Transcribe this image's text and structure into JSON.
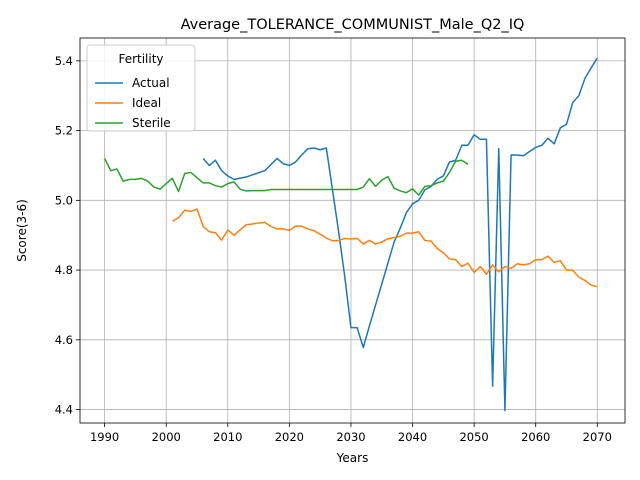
{
  "chart_data": {
    "type": "line",
    "title": "Average_TOLERANCE_COMMUNIST_Male_Q2_IQ",
    "xlabel": "Years",
    "ylabel": "Score(3-6)",
    "xlim": [
      1986,
      2074.5
    ],
    "ylim": [
      4.36,
      4.565
    ],
    "xticks": [
      1990,
      2000,
      2010,
      2020,
      2030,
      2040,
      2050,
      2060,
      2070
    ],
    "yticks": [
      4.4,
      4.6,
      4.8,
      5.0,
      5.2,
      5.4
    ],
    "ytick_labels": [
      "4.4",
      "4.6",
      "4.8",
      "5.0",
      "5.2",
      "5.4"
    ],
    "grid": true,
    "legend": {
      "title": "Fertility",
      "placement": "upper-left"
    },
    "series": [
      {
        "name": "Actual",
        "color": "#1f77b4",
        "points": [
          [
            2006,
            5.12
          ],
          [
            2007,
            5.1
          ],
          [
            2008,
            5.115
          ],
          [
            2009,
            5.085
          ],
          [
            2010,
            5.07
          ],
          [
            2011,
            5.06
          ],
          [
            2013,
            5.067
          ],
          [
            2016,
            5.085
          ],
          [
            2018,
            5.12
          ],
          [
            2019,
            5.105
          ],
          [
            2020,
            5.1
          ],
          [
            2021,
            5.11
          ],
          [
            2022,
            5.13
          ],
          [
            2023,
            5.148
          ],
          [
            2024,
            5.15
          ],
          [
            2025,
            5.145
          ],
          [
            2026,
            5.15
          ],
          [
            2027,
            5.03
          ],
          [
            2028,
            4.91
          ],
          [
            2029,
            4.78
          ],
          [
            2030,
            4.635
          ],
          [
            2031,
            4.635
          ],
          [
            2032,
            4.578
          ],
          [
            2033,
            4.64
          ],
          [
            2034,
            4.7
          ],
          [
            2035,
            4.76
          ],
          [
            2036,
            4.82
          ],
          [
            2037,
            4.88
          ],
          [
            2038,
            4.92
          ],
          [
            2039,
            4.965
          ],
          [
            2040,
            4.99
          ],
          [
            2041,
            5.0
          ],
          [
            2042,
            5.03
          ],
          [
            2043,
            5.04
          ],
          [
            2044,
            5.06
          ],
          [
            2045,
            5.07
          ],
          [
            2046,
            5.11
          ],
          [
            2047,
            5.115
          ],
          [
            2048,
            5.158
          ],
          [
            2049,
            5.158
          ],
          [
            2050,
            5.188
          ],
          [
            2051,
            5.175
          ],
          [
            2052,
            5.175
          ],
          [
            2053,
            4.467
          ],
          [
            2054,
            5.148
          ],
          [
            2055,
            4.397
          ],
          [
            2056,
            5.13
          ],
          [
            2057,
            5.13
          ],
          [
            2058,
            5.128
          ],
          [
            2059,
            5.14
          ],
          [
            2060,
            5.152
          ],
          [
            2061,
            5.158
          ],
          [
            2062,
            5.178
          ],
          [
            2063,
            5.162
          ],
          [
            2064,
            5.208
          ],
          [
            2065,
            5.218
          ],
          [
            2066,
            5.28
          ],
          [
            2067,
            5.3
          ],
          [
            2068,
            5.35
          ],
          [
            2069,
            5.38
          ],
          [
            2070,
            5.408
          ]
        ]
      },
      {
        "name": "Ideal",
        "color": "#ff7f0e",
        "points": [
          [
            2001,
            4.94
          ],
          [
            2002,
            4.95
          ],
          [
            2003,
            4.972
          ],
          [
            2004,
            4.968
          ],
          [
            2005,
            4.975
          ],
          [
            2006,
            4.925
          ],
          [
            2007,
            4.91
          ],
          [
            2008,
            4.907
          ],
          [
            2009,
            4.886
          ],
          [
            2010,
            4.915
          ],
          [
            2011,
            4.9
          ],
          [
            2012,
            4.915
          ],
          [
            2013,
            4.93
          ],
          [
            2014,
            4.932
          ],
          [
            2015,
            4.935
          ],
          [
            2016,
            4.937
          ],
          [
            2017,
            4.925
          ],
          [
            2018,
            4.918
          ],
          [
            2019,
            4.918
          ],
          [
            2020,
            4.914
          ],
          [
            2021,
            4.926
          ],
          [
            2022,
            4.926
          ],
          [
            2023,
            4.918
          ],
          [
            2024,
            4.913
          ],
          [
            2025,
            4.903
          ],
          [
            2026,
            4.892
          ],
          [
            2027,
            4.884
          ],
          [
            2028,
            4.885
          ],
          [
            2029,
            4.891
          ],
          [
            2030,
            4.889
          ],
          [
            2031,
            4.891
          ],
          [
            2032,
            4.875
          ],
          [
            2033,
            4.885
          ],
          [
            2034,
            4.875
          ],
          [
            2035,
            4.88
          ],
          [
            2036,
            4.89
          ],
          [
            2037,
            4.893
          ],
          [
            2038,
            4.897
          ],
          [
            2039,
            4.906
          ],
          [
            2040,
            4.906
          ],
          [
            2041,
            4.91
          ],
          [
            2042,
            4.885
          ],
          [
            2043,
            4.883
          ],
          [
            2044,
            4.862
          ],
          [
            2045,
            4.85
          ],
          [
            2046,
            4.832
          ],
          [
            2047,
            4.83
          ],
          [
            2048,
            4.81
          ],
          [
            2049,
            4.82
          ],
          [
            2050,
            4.793
          ],
          [
            2051,
            4.81
          ],
          [
            2052,
            4.788
          ],
          [
            2053,
            4.815
          ],
          [
            2054,
            4.795
          ],
          [
            2055,
            4.81
          ],
          [
            2056,
            4.805
          ],
          [
            2057,
            4.818
          ],
          [
            2058,
            4.815
          ],
          [
            2059,
            4.818
          ],
          [
            2060,
            4.83
          ],
          [
            2061,
            4.83
          ],
          [
            2062,
            4.84
          ],
          [
            2063,
            4.822
          ],
          [
            2064,
            4.827
          ],
          [
            2065,
            4.8
          ],
          [
            2066,
            4.8
          ],
          [
            2067,
            4.78
          ],
          [
            2068,
            4.77
          ],
          [
            2069,
            4.757
          ],
          [
            2070,
            4.752
          ]
        ]
      },
      {
        "name": "Sterile",
        "color": "#2ca02c",
        "points": [
          [
            1990,
            5.12
          ],
          [
            1991,
            5.085
          ],
          [
            1992,
            5.09
          ],
          [
            1993,
            5.055
          ],
          [
            1994,
            5.06
          ],
          [
            1995,
            5.06
          ],
          [
            1996,
            5.063
          ],
          [
            1997,
            5.055
          ],
          [
            1998,
            5.038
          ],
          [
            1999,
            5.032
          ],
          [
            2000,
            5.048
          ],
          [
            2001,
            5.063
          ],
          [
            2002,
            5.025
          ],
          [
            2003,
            5.077
          ],
          [
            2004,
            5.08
          ],
          [
            2005,
            5.065
          ],
          [
            2006,
            5.05
          ],
          [
            2007,
            5.05
          ],
          [
            2008,
            5.042
          ],
          [
            2009,
            5.038
          ],
          [
            2010,
            5.048
          ],
          [
            2011,
            5.053
          ],
          [
            2012,
            5.032
          ],
          [
            2013,
            5.027
          ],
          [
            2014,
            5.028
          ],
          [
            2015,
            5.028
          ],
          [
            2016,
            5.028
          ],
          [
            2017,
            5.031
          ],
          [
            2018,
            5.031
          ],
          [
            2019,
            5.031
          ],
          [
            2020,
            5.031
          ],
          [
            2025,
            5.031
          ],
          [
            2030,
            5.031
          ],
          [
            2031,
            5.031
          ],
          [
            2032,
            5.038
          ],
          [
            2033,
            5.062
          ],
          [
            2034,
            5.04
          ],
          [
            2035,
            5.058
          ],
          [
            2036,
            5.068
          ],
          [
            2037,
            5.035
          ],
          [
            2038,
            5.027
          ],
          [
            2039,
            5.022
          ],
          [
            2040,
            5.033
          ],
          [
            2041,
            5.015
          ],
          [
            2042,
            5.04
          ],
          [
            2043,
            5.042
          ],
          [
            2044,
            5.05
          ],
          [
            2045,
            5.055
          ],
          [
            2046,
            5.08
          ],
          [
            2047,
            5.112
          ],
          [
            2048,
            5.115
          ],
          [
            2049,
            5.103
          ]
        ]
      }
    ]
  }
}
